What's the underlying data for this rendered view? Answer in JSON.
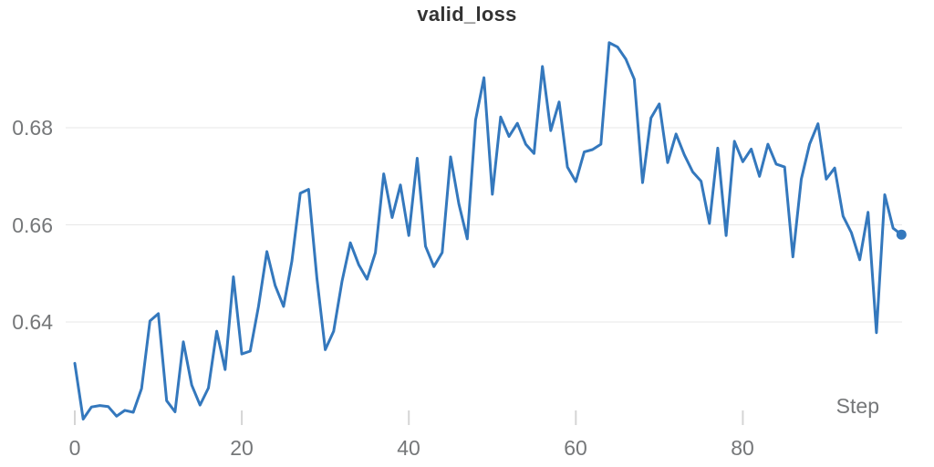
{
  "title": "valid_loss",
  "axes": {
    "x": {
      "label": "Step",
      "ticks": [
        {
          "value": 0,
          "label": "0"
        },
        {
          "value": 20,
          "label": "20"
        },
        {
          "value": 40,
          "label": "40"
        },
        {
          "value": 60,
          "label": "60"
        },
        {
          "value": 80,
          "label": "80"
        }
      ]
    },
    "y": {
      "ticks": [
        {
          "value": 0.68,
          "label": "0.68"
        },
        {
          "value": 0.66,
          "label": "0.66"
        },
        {
          "value": 0.64,
          "label": "0.64"
        }
      ]
    }
  },
  "colors": {
    "line": "#3478bd",
    "end_dot": "#3478bd",
    "grid": "#e7e7e7",
    "tick": "#d5d5d5",
    "axis_text": "#757779",
    "title_text": "#333333",
    "background": "#ffffff"
  },
  "chart_data": {
    "type": "line",
    "title": "valid_loss",
    "xlabel": "Step",
    "ylabel": "",
    "xlim": [
      0,
      99
    ],
    "ylim": [
      0.618,
      0.699
    ],
    "grid": "horizontal",
    "legend": "none",
    "last_point_marker": true,
    "x_ticks": [
      0,
      20,
      40,
      60,
      80
    ],
    "y_ticks": [
      0.64,
      0.66,
      0.68
    ],
    "series": [
      {
        "name": "valid_loss",
        "x_start": 0,
        "x_step": 1,
        "values": [
          0.6315,
          0.62,
          0.6225,
          0.6228,
          0.6226,
          0.6206,
          0.6218,
          0.6214,
          0.6263,
          0.6402,
          0.6417,
          0.6238,
          0.6215,
          0.6359,
          0.627,
          0.6229,
          0.6264,
          0.6381,
          0.6302,
          0.6493,
          0.6334,
          0.634,
          0.6432,
          0.6545,
          0.6475,
          0.6432,
          0.6525,
          0.6665,
          0.6673,
          0.6489,
          0.6343,
          0.6381,
          0.6484,
          0.6563,
          0.6518,
          0.6488,
          0.6543,
          0.6705,
          0.6615,
          0.6682,
          0.6578,
          0.6737,
          0.6556,
          0.6514,
          0.6543,
          0.674,
          0.6643,
          0.6571,
          0.6816,
          0.6903,
          0.6663,
          0.6822,
          0.6782,
          0.6809,
          0.6766,
          0.6747,
          0.6926,
          0.6794,
          0.6853,
          0.6719,
          0.6689,
          0.675,
          0.6755,
          0.6766,
          0.6975,
          0.6966,
          0.6941,
          0.69,
          0.6687,
          0.682,
          0.6849,
          0.6728,
          0.6787,
          0.6744,
          0.6709,
          0.669,
          0.6603,
          0.6758,
          0.6578,
          0.6772,
          0.673,
          0.6756,
          0.67,
          0.6766,
          0.6725,
          0.6719,
          0.6534,
          0.6694,
          0.6766,
          0.6808,
          0.6694,
          0.6717,
          0.6618,
          0.6584,
          0.6528,
          0.6626,
          0.6378,
          0.6662,
          0.6593,
          0.658
        ]
      }
    ]
  }
}
